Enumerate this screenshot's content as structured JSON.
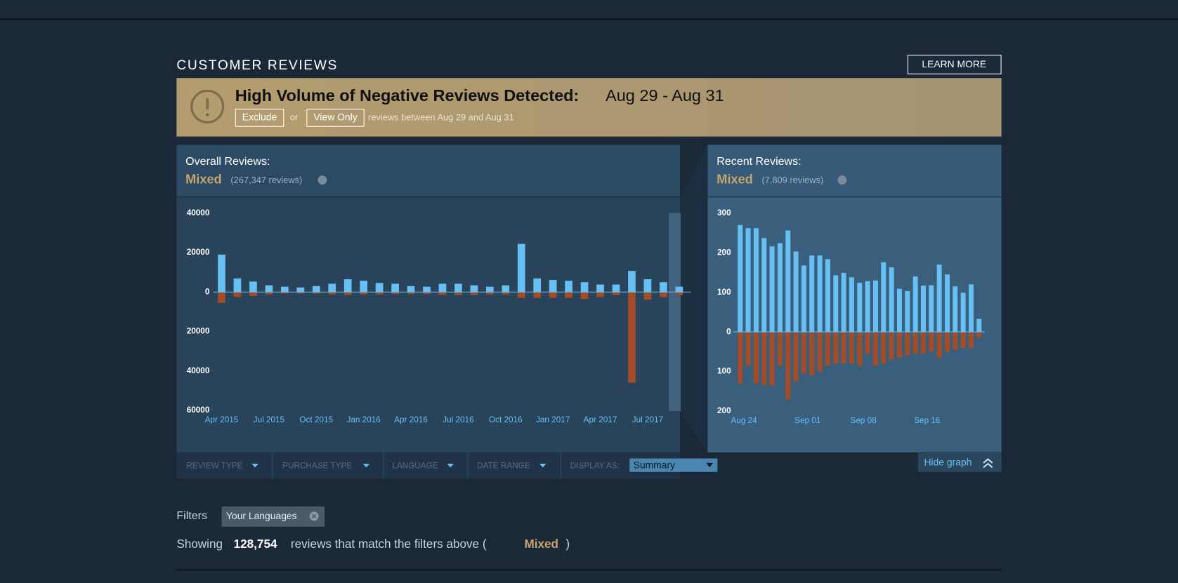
{
  "header": {
    "title": "CUSTOMER REVIEWS",
    "learn_more": "LEARN MORE"
  },
  "alert": {
    "title": "High Volume of Negative Reviews Detected:",
    "dates": "Aug 29 - Aug 31",
    "exclude": "Exclude",
    "or": "or",
    "view_only": "View Only",
    "note": "reviews between Aug 29 and Aug 31"
  },
  "overall": {
    "label": "Overall Reviews:",
    "rating": "Mixed",
    "count": "(267,347 reviews)"
  },
  "recent": {
    "label": "Recent Reviews:",
    "rating": "Mixed",
    "count": "(7,809 reviews)"
  },
  "filters_bar": {
    "items": [
      "REVIEW TYPE",
      "PURCHASE TYPE",
      "LANGUAGE",
      "DATE RANGE",
      "DISPLAY AS:"
    ],
    "display_value": "Summary",
    "hide_graph": "Hide graph"
  },
  "filters": {
    "label": "Filters",
    "tags": [
      "Your Languages"
    ]
  },
  "summary": {
    "prefix": "Showing",
    "count": "128,754",
    "middle": "reviews that match the filters above (",
    "rating": "Mixed",
    "suffix": ")"
  },
  "chart_data": [
    {
      "type": "bar",
      "categories": [
        "Apr 2015",
        null,
        null,
        "Jul 2015",
        null,
        null,
        "Oct 2015",
        null,
        null,
        "Jan 2016",
        null,
        null,
        "Apr 2016",
        null,
        null,
        "Jul 2016",
        null,
        null,
        "Oct 2016",
        null,
        null,
        "Jan 2017",
        null,
        null,
        "Apr 2017",
        null,
        null,
        "Jul 2017",
        null,
        null
      ],
      "series": [
        {
          "color": "#66c0f4",
          "values": [
            19000,
            6900,
            5300,
            3400,
            2700,
            2300,
            3000,
            4200,
            6500,
            5700,
            4600,
            4200,
            3000,
            2700,
            4200,
            4200,
            3400,
            2700,
            3400,
            24400,
            6900,
            6100,
            5700,
            5000,
            3800,
            3800,
            10700,
            6500,
            5000,
            2700
          ]
        },
        {
          "color": "#a34c25",
          "values": [
            -5500,
            -2500,
            -2000,
            -1200,
            -800,
            -800,
            -800,
            -1200,
            -1500,
            -1200,
            -1200,
            -1000,
            -1000,
            -1000,
            -1500,
            -1500,
            -1500,
            -1200,
            -1200,
            -3000,
            -3000,
            -3000,
            -3000,
            -3500,
            -2500,
            -1500,
            -46000,
            -3800,
            -2500,
            -1500
          ]
        }
      ],
      "ylim": [
        -60000,
        40000
      ],
      "yticks": [
        40000,
        20000,
        0,
        {
          "value": -20000,
          "label": "20000"
        },
        {
          "value": -40000,
          "label": "40000"
        },
        {
          "value": -60000,
          "label": "60000"
        }
      ]
    },
    {
      "type": "bar",
      "categories": [
        "Aug 24",
        null,
        null,
        null,
        null,
        null,
        null,
        null,
        "Sep 01",
        null,
        null,
        null,
        null,
        null,
        null,
        "Sep 08",
        null,
        null,
        null,
        null,
        null,
        null,
        null,
        "Sep 16",
        null,
        null,
        null,
        null,
        null,
        null,
        null
      ],
      "series": [
        {
          "color": "#66c0f4",
          "values": [
            270,
            262,
            262,
            237,
            216,
            224,
            256,
            203,
            168,
            193,
            193,
            184,
            143,
            149,
            138,
            124,
            128,
            130,
            176,
            163,
            109,
            103,
            140,
            117,
            118,
            170,
            145,
            115,
            99,
            120,
            33
          ]
        },
        {
          "color": "#a34c25",
          "values": [
            -130,
            -85,
            -130,
            -135,
            -135,
            -85,
            -170,
            -125,
            -105,
            -110,
            -100,
            -85,
            -80,
            -80,
            -80,
            -85,
            -55,
            -85,
            -80,
            -70,
            -65,
            -60,
            -55,
            -55,
            -50,
            -65,
            -50,
            -45,
            -40,
            -40,
            -15
          ]
        }
      ],
      "ylim": [
        -200,
        300
      ],
      "yticks": [
        300,
        200,
        100,
        0,
        {
          "value": -100,
          "label": "100"
        },
        {
          "value": -200,
          "label": "200"
        }
      ]
    }
  ]
}
